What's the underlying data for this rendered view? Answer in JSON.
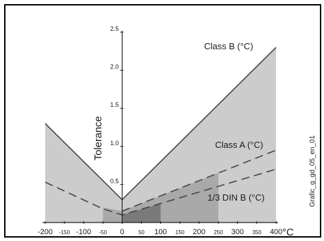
{
  "chart_data": {
    "type": "area",
    "title": "",
    "xlabel": "°C",
    "ylabel": "Tolerance",
    "xlim": [
      -200,
      400
    ],
    "ylim": [
      0,
      2.5
    ],
    "grid": false,
    "x_ticks": [
      "-200",
      "-150",
      "-100",
      "-50",
      "0",
      "50",
      "100",
      "150",
      "200",
      "250",
      "300",
      "350",
      "400"
    ],
    "y_ticks": [
      "0.5",
      "1.0",
      "1.5",
      "2.0",
      "2.5"
    ],
    "series": [
      {
        "name": "Class B (°C)",
        "style": "solid",
        "x": [
          -200,
          0,
          400
        ],
        "y": [
          1.3,
          0.3,
          2.3
        ]
      },
      {
        "name": "Class A (°C)",
        "style": "dashed",
        "x": [
          0,
          400
        ],
        "y": [
          0.15,
          0.95
        ]
      },
      {
        "name": "1/3 DIN B (°C)",
        "style": "dashed",
        "x": [
          -200,
          -50,
          0,
          400
        ],
        "y": [
          0.53,
          0.18,
          0.1,
          0.7
        ]
      }
    ],
    "regions": [
      {
        "x": [
          -200,
          0,
          400
        ],
        "upper": [
          1.3,
          0.3,
          2.3
        ],
        "color": "#cccccc"
      },
      {
        "x": [
          -50,
          0,
          250
        ],
        "upper": [
          0.2,
          0.15,
          0.65
        ],
        "color": "#a9a9a9"
      },
      {
        "x": [
          0,
          100
        ],
        "upper": [
          0.1,
          0.25
        ],
        "color": "#7a7a7a"
      }
    ],
    "annotations": [
      "Class B (°C)",
      "Class A (°C)",
      "1/3 DIN B (°C)"
    ],
    "side_caption": "Grafic_g_gd_05_en_01"
  },
  "colors": {
    "frame": "#000000",
    "line": "#444444",
    "fill_light": "#cccccc",
    "fill_mid": "#a9a9a9",
    "fill_dark": "#7a7a7a"
  }
}
